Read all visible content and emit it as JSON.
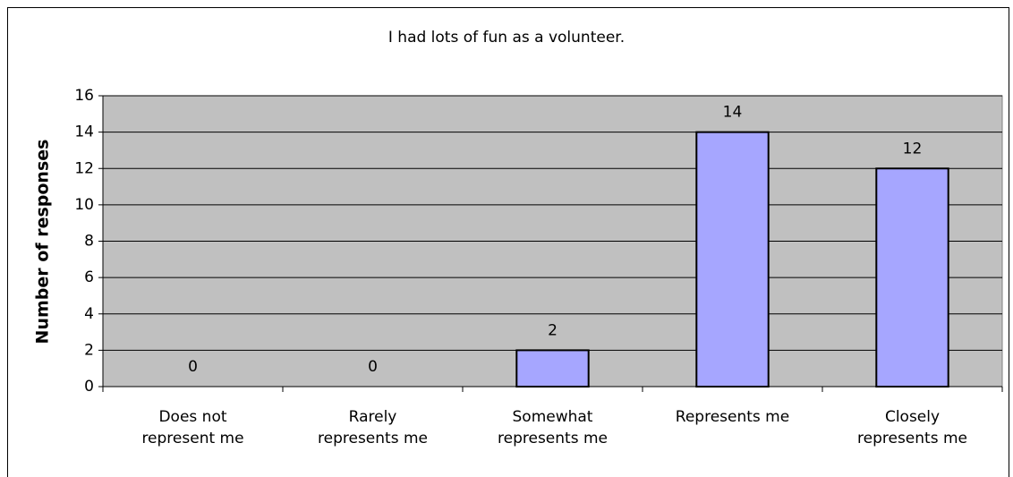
{
  "chart_data": {
    "type": "bar",
    "title": "I had lots of fun as a volunteer.",
    "y_label": "Number of responses",
    "categories": [
      "Does not represent me",
      "Rarely represents me",
      "Somewhat represents me",
      "Represents me",
      "Closely represents me"
    ],
    "values": [
      0,
      0,
      2,
      14,
      12
    ],
    "color": "#a6a6ff",
    "ylim": [
      0,
      16
    ],
    "yticks": [
      0,
      2,
      4,
      6,
      8,
      10,
      12,
      14,
      16
    ],
    "grid": true
  }
}
